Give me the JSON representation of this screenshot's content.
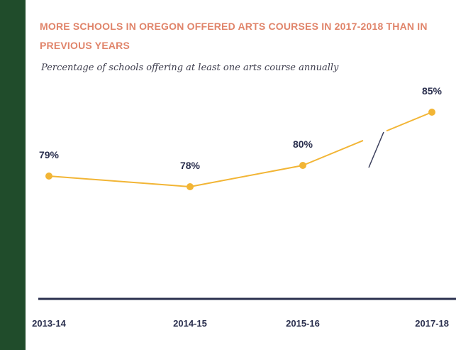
{
  "chart_data": {
    "type": "line",
    "title": "MORE SCHOOLS IN OREGON OFFERED ARTS COURSES IN 2017-2018 THAN IN PREVIOUS YEARS",
    "subtitle": "Percentage of schools offering at least one arts course annually",
    "categories": [
      "2013-14",
      "2014-15",
      "2015-16",
      "2017-18"
    ],
    "series": [
      {
        "values": [
          79,
          78,
          80,
          85
        ],
        "labels": [
          "79%",
          "78%",
          "80%",
          "85%"
        ],
        "color": "#f2b535"
      }
    ],
    "axis_break_between": [
      "2015-16",
      "2017-18"
    ],
    "grid": false,
    "axis_color": "#2a2f4e"
  }
}
